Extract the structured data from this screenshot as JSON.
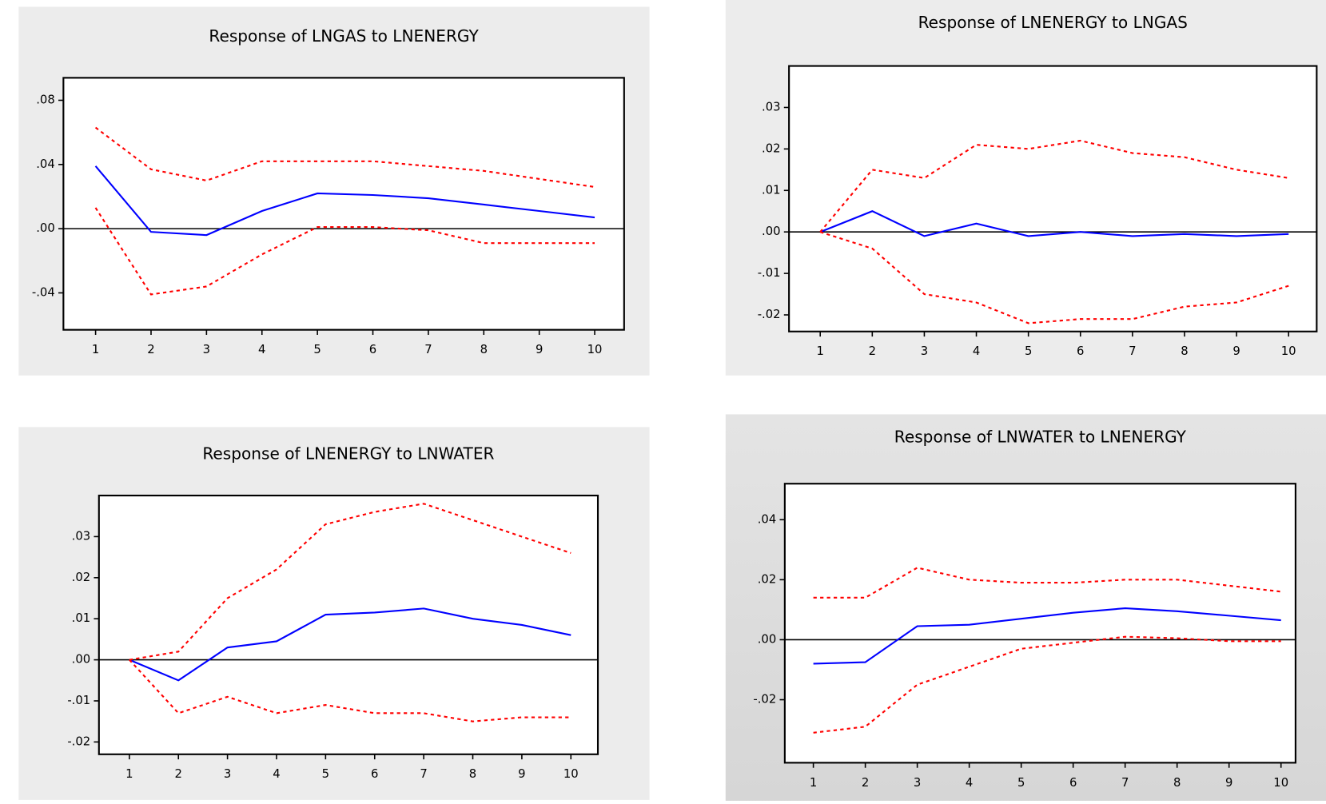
{
  "chart_data": [
    {
      "type": "line",
      "title": "Response of LNGAS to LNENERGY",
      "x": [
        1,
        2,
        3,
        4,
        5,
        6,
        7,
        8,
        9,
        10
      ],
      "xlim": [
        0.42,
        10.53
      ],
      "xticks": [
        1,
        2,
        3,
        4,
        5,
        6,
        7,
        8,
        9,
        10
      ],
      "ylim": [
        -0.063,
        0.094
      ],
      "yticks": [
        {
          "value": -0.04,
          "label": "-.04"
        },
        {
          "value": 0,
          "label": ".00"
        },
        {
          "value": 0.04,
          "label": ".04"
        },
        {
          "value": 0.08,
          "label": ".08"
        }
      ],
      "series": [
        {
          "color": "#0000ff",
          "style": "solid",
          "values": [
            0.039,
            -0.002,
            -0.004,
            0.011,
            0.022,
            0.021,
            0.019,
            0.015,
            0.011,
            0.007
          ]
        },
        {
          "color": "#ff0000",
          "style": "dashed",
          "values": [
            0.063,
            0.037,
            0.03,
            0.042,
            0.042,
            0.042,
            0.039,
            0.036,
            0.031,
            0.026
          ]
        },
        {
          "color": "#ff0000",
          "style": "dashed",
          "values": [
            0.013,
            -0.041,
            -0.036,
            -0.016,
            0.001,
            0.001,
            -0.001,
            -0.009,
            -0.009,
            -0.009
          ]
        }
      ]
    },
    {
      "type": "line",
      "title": "Response of LNENERGY to LNGAS",
      "x": [
        1,
        2,
        3,
        4,
        5,
        6,
        7,
        8,
        9,
        10
      ],
      "xlim": [
        0.4,
        10.54
      ],
      "xticks": [
        1,
        2,
        3,
        4,
        5,
        6,
        7,
        8,
        9,
        10
      ],
      "ylim": [
        -0.024,
        0.04
      ],
      "yticks": [
        {
          "value": -0.02,
          "label": "-.02"
        },
        {
          "value": -0.01,
          "label": "-.01"
        },
        {
          "value": 0,
          "label": ".00"
        },
        {
          "value": 0.01,
          "label": ".01"
        },
        {
          "value": 0.02,
          "label": ".02"
        },
        {
          "value": 0.03,
          "label": ".03"
        }
      ],
      "series": [
        {
          "color": "#0000ff",
          "style": "solid",
          "values": [
            0,
            0.005,
            -0.001,
            0.002,
            -0.001,
            0,
            -0.001,
            -0.0005,
            -0.001,
            -0.0005
          ]
        },
        {
          "color": "#ff0000",
          "style": "dashed",
          "values": [
            0,
            0.015,
            0.013,
            0.021,
            0.02,
            0.022,
            0.019,
            0.018,
            0.015,
            0.013
          ]
        },
        {
          "color": "#ff0000",
          "style": "dashed",
          "values": [
            0,
            -0.004,
            -0.015,
            -0.017,
            -0.022,
            -0.021,
            -0.021,
            -0.018,
            -0.017,
            -0.013
          ]
        }
      ]
    },
    {
      "type": "line",
      "title": "Response of LNENERGY to LNWATER",
      "x": [
        1,
        2,
        3,
        4,
        5,
        6,
        7,
        8,
        9,
        10
      ],
      "xlim": [
        0.38,
        10.55
      ],
      "xticks": [
        1,
        2,
        3,
        4,
        5,
        6,
        7,
        8,
        9,
        10
      ],
      "ylim": [
        -0.023,
        0.04
      ],
      "yticks": [
        {
          "value": -0.02,
          "label": "-.02"
        },
        {
          "value": -0.01,
          "label": "-.01"
        },
        {
          "value": 0,
          "label": ".00"
        },
        {
          "value": 0.01,
          "label": ".01"
        },
        {
          "value": 0.02,
          "label": ".02"
        },
        {
          "value": 0.03,
          "label": ".03"
        }
      ],
      "series": [
        {
          "color": "#0000ff",
          "style": "solid",
          "values": [
            0,
            -0.005,
            0.003,
            0.0045,
            0.011,
            0.0115,
            0.0125,
            0.01,
            0.0085,
            0.006
          ]
        },
        {
          "color": "#ff0000",
          "style": "dashed",
          "values": [
            0,
            0.002,
            0.015,
            0.022,
            0.033,
            0.036,
            0.038,
            0.034,
            0.03,
            0.026
          ]
        },
        {
          "color": "#ff0000",
          "style": "dashed",
          "values": [
            0,
            -0.013,
            -0.009,
            -0.013,
            -0.011,
            -0.013,
            -0.013,
            -0.015,
            -0.014,
            -0.014
          ]
        }
      ]
    },
    {
      "type": "line",
      "title": "Response of LNWATER to LNENERGY",
      "x": [
        1,
        2,
        3,
        4,
        5,
        6,
        7,
        8,
        9,
        10
      ],
      "xlim": [
        0.45,
        10.28
      ],
      "xticks": [
        1,
        2,
        3,
        4,
        5,
        6,
        7,
        8,
        9,
        10
      ],
      "ylim": [
        -0.041,
        0.052
      ],
      "yticks": [
        {
          "value": -0.02,
          "label": "-.02"
        },
        {
          "value": 0,
          "label": ".00"
        },
        {
          "value": 0.02,
          "label": ".02"
        },
        {
          "value": 0.04,
          "label": ".04"
        }
      ],
      "series": [
        {
          "color": "#0000ff",
          "style": "solid",
          "values": [
            -0.008,
            -0.0075,
            0.0045,
            0.005,
            0.007,
            0.009,
            0.0105,
            0.0095,
            0.008,
            0.0065
          ]
        },
        {
          "color": "#ff0000",
          "style": "dashed",
          "values": [
            0.014,
            0.014,
            0.024,
            0.02,
            0.019,
            0.019,
            0.02,
            0.02,
            0.018,
            0.016
          ]
        },
        {
          "color": "#ff0000",
          "style": "dashed",
          "values": [
            -0.031,
            -0.029,
            -0.015,
            -0.009,
            -0.003,
            -0.001,
            0.001,
            0.0005,
            -0.0005,
            -0.0005
          ]
        }
      ]
    }
  ]
}
